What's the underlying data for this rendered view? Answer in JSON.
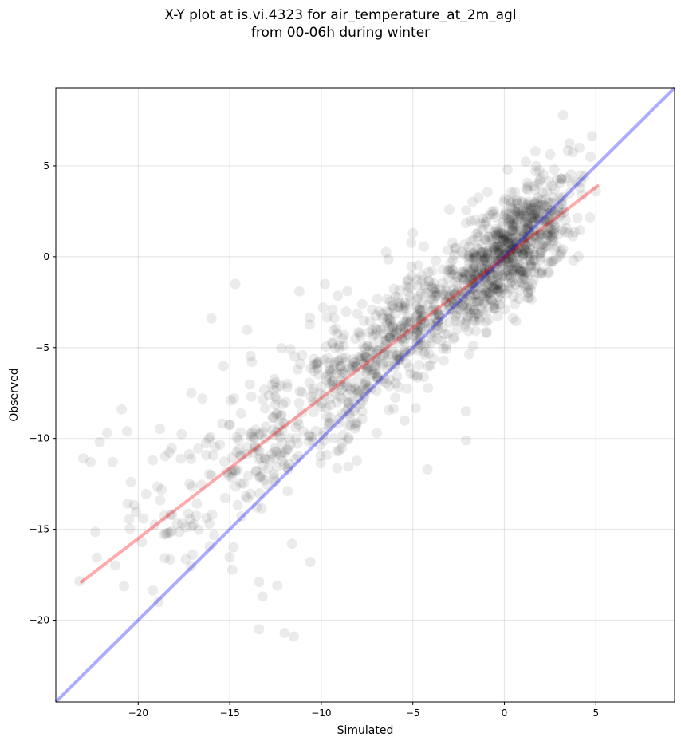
{
  "chart_data": {
    "type": "scatter",
    "title_line1": "X-Y plot at is.vi.4323 for air_temperature_at_2m_agl",
    "title_line2": "from 00-06h during winter",
    "xlabel": "Simulated",
    "ylabel": "Observed",
    "xlim": [
      -24.5,
      9.3
    ],
    "ylim": [
      -24.5,
      9.3
    ],
    "grid": true,
    "x_ticks": [
      -20,
      -15,
      -10,
      -5,
      0,
      5
    ],
    "y_ticks": [
      -20,
      -15,
      -10,
      -5,
      0,
      5
    ],
    "x_tick_labels": [
      "−20",
      "−15",
      "−10",
      "−5",
      "0",
      "5"
    ],
    "y_tick_labels": [
      "−20",
      "−15",
      "−10",
      "−5",
      "0",
      "5"
    ],
    "point_color": "#000000",
    "point_alpha": 0.08,
    "one_to_one_line": {
      "color": "#0000ff",
      "alpha": 0.33,
      "from": [
        -24.5,
        -24.5
      ],
      "to": [
        9.3,
        9.3
      ]
    },
    "regression_line": {
      "color": "#ff0000",
      "alpha": 0.33,
      "from": [
        -23.1,
        -17.9
      ],
      "to": [
        5.1,
        3.9
      ]
    },
    "point_count": 1500,
    "approximate_model": {
      "slope": 0.77,
      "intercept": 0.05,
      "noise_sd": 1.6,
      "x_range": [
        -23.2,
        5.2
      ]
    },
    "outliers": [
      [
        -23.0,
        -11.1
      ],
      [
        -22.6,
        -11.3
      ],
      [
        -22.1,
        -10.2
      ],
      [
        -21.7,
        -9.7
      ],
      [
        -21.4,
        -11.3
      ],
      [
        -20.9,
        -8.4
      ],
      [
        -20.6,
        -9.6
      ],
      [
        -20.4,
        -12.4
      ],
      [
        -19.8,
        -15.7
      ],
      [
        -19.2,
        -11.2
      ],
      [
        -18.8,
        -13.4
      ],
      [
        -18.4,
        -15.2
      ],
      [
        -17.1,
        -7.5
      ],
      [
        -16.0,
        -3.4
      ],
      [
        -14.7,
        -1.5
      ],
      [
        -13.4,
        -20.5
      ],
      [
        -12.0,
        -20.7
      ],
      [
        -11.5,
        -20.9
      ],
      [
        -13.2,
        -18.7
      ],
      [
        -12.4,
        -18.1
      ],
      [
        -13.4,
        -17.9
      ],
      [
        -10.6,
        -16.8
      ],
      [
        -11.6,
        -15.8
      ],
      [
        -4.2,
        -11.7
      ],
      [
        -2.1,
        -8.5
      ],
      [
        -2.1,
        -10.1
      ],
      [
        3.2,
        7.8
      ],
      [
        4.1,
        6.0
      ],
      [
        4.7,
        5.5
      ],
      [
        5.0,
        3.6
      ],
      [
        -9.8,
        -1.5
      ],
      [
        -11.2,
        -1.9
      ],
      [
        -5.0,
        1.3
      ],
      [
        -3.0,
        2.6
      ],
      [
        1.7,
        5.8
      ]
    ]
  }
}
